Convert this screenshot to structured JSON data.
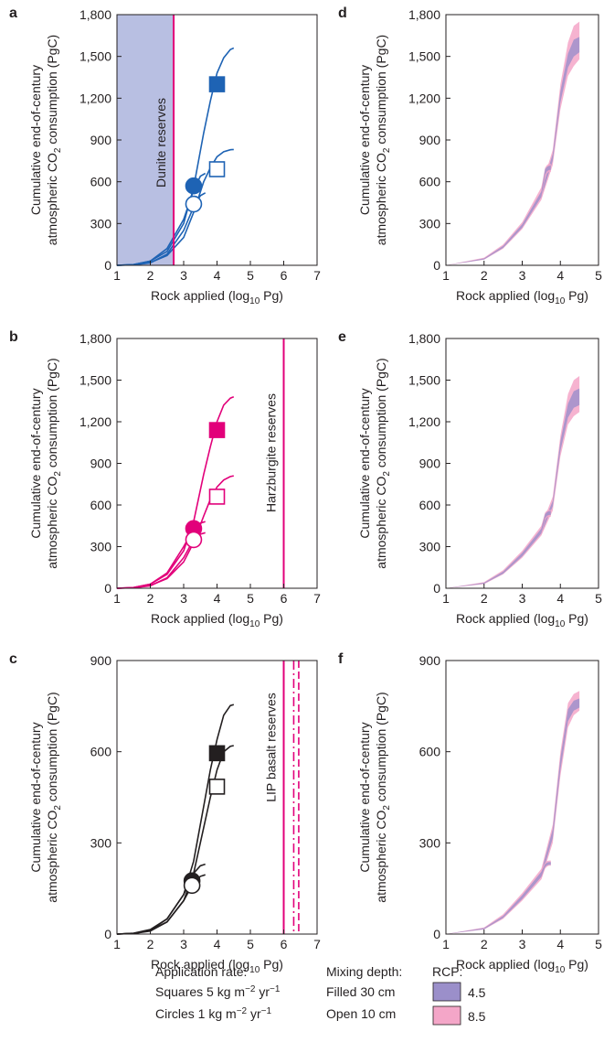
{
  "panels": [
    {
      "label": "a",
      "xlabel": "Rock applied (log10 Pg)",
      "ylabel_line1": "Cumulative end-of-century",
      "ylabel_line2": "atmospheric CO2 consumption (PgC)",
      "reserve_label": "Dunite reserves",
      "color": "#1e63b4",
      "shade_color": "#b8bfe2",
      "reserve_x": 2.7,
      "xlim": [
        1,
        7
      ],
      "ylim": [
        0,
        1800
      ],
      "xticks": [
        "1",
        "2",
        "3",
        "4",
        "5",
        "6",
        "7"
      ],
      "yticks": [
        "0",
        "300",
        "600",
        "900",
        "1,200",
        "1,500",
        "1,800"
      ],
      "curves": [
        {
          "x": [
            1.0,
            1.5,
            2.0,
            2.5,
            3.0,
            3.3,
            3.6,
            3.8,
            4.0,
            4.2,
            4.4,
            4.5
          ],
          "y": [
            0,
            5,
            30,
            100,
            300,
            560,
            950,
            1180,
            1380,
            1490,
            1550,
            1560
          ]
        },
        {
          "x": [
            1.0,
            1.5,
            2.0,
            2.5,
            3.0,
            3.3,
            3.6,
            3.8,
            4.0,
            4.2,
            4.4,
            4.5
          ],
          "y": [
            0,
            3,
            20,
            70,
            200,
            380,
            600,
            700,
            780,
            815,
            830,
            832
          ]
        },
        {
          "x": [
            1.0,
            1.5,
            2.0,
            2.5,
            3.0,
            3.3,
            3.5,
            3.65
          ],
          "y": [
            0,
            5,
            30,
            120,
            330,
            540,
            640,
            660
          ]
        },
        {
          "x": [
            1.0,
            1.5,
            2.0,
            2.5,
            3.0,
            3.3,
            3.5,
            3.65
          ],
          "y": [
            0,
            3,
            18,
            80,
            250,
            420,
            500,
            520
          ]
        }
      ],
      "markers": [
        {
          "shape": "square",
          "fill": "filled",
          "x": 4.0,
          "y": 1300
        },
        {
          "shape": "square",
          "fill": "open",
          "x": 4.0,
          "y": 690
        },
        {
          "shape": "circle",
          "fill": "filled",
          "x": 3.3,
          "y": 570
        },
        {
          "shape": "circle",
          "fill": "open",
          "x": 3.3,
          "y": 440
        }
      ]
    },
    {
      "label": "b",
      "xlabel": "Rock applied (log10 Pg)",
      "ylabel_line1": "Cumulative end-of-century",
      "ylabel_line2": "atmospheric CO2 consumption (PgC)",
      "reserve_label": "Harzburgite reserves",
      "color": "#e2007a",
      "reserve_x": 6.0,
      "xlim": [
        1,
        7
      ],
      "ylim": [
        0,
        1800
      ],
      "xticks": [
        "1",
        "2",
        "3",
        "4",
        "5",
        "6",
        "7"
      ],
      "yticks": [
        "0",
        "300",
        "600",
        "900",
        "1,200",
        "1,500",
        "1,800"
      ],
      "curves": [
        {
          "x": [
            1.0,
            1.5,
            2.0,
            2.5,
            3.0,
            3.3,
            3.6,
            3.8,
            4.0,
            4.2,
            4.4,
            4.5
          ],
          "y": [
            0,
            5,
            30,
            100,
            270,
            480,
            820,
            1020,
            1200,
            1320,
            1370,
            1380
          ]
        },
        {
          "x": [
            1.0,
            1.5,
            2.0,
            2.5,
            3.0,
            3.3,
            3.6,
            3.8,
            4.0,
            4.2,
            4.4,
            4.5
          ],
          "y": [
            0,
            3,
            20,
            70,
            190,
            330,
            520,
            640,
            730,
            780,
            805,
            810
          ]
        },
        {
          "x": [
            1.0,
            1.5,
            2.0,
            2.5,
            3.0,
            3.3,
            3.5,
            3.65
          ],
          "y": [
            0,
            5,
            30,
            110,
            300,
            430,
            470,
            480
          ]
        },
        {
          "x": [
            1.0,
            1.5,
            2.0,
            2.5,
            3.0,
            3.3,
            3.5,
            3.65
          ],
          "y": [
            0,
            3,
            18,
            75,
            220,
            350,
            390,
            400
          ]
        }
      ],
      "markers": [
        {
          "shape": "square",
          "fill": "filled",
          "x": 4.0,
          "y": 1140
        },
        {
          "shape": "square",
          "fill": "open",
          "x": 4.0,
          "y": 660
        },
        {
          "shape": "circle",
          "fill": "filled",
          "x": 3.3,
          "y": 430
        },
        {
          "shape": "circle",
          "fill": "open",
          "x": 3.3,
          "y": 350
        }
      ]
    },
    {
      "label": "c",
      "xlabel": "Rock applied (log10 Pg)",
      "ylabel_line1": "Cumulative end-of-century",
      "ylabel_line2": "atmospheric CO2 consumption (PgC)",
      "reserve_label": "LIP basalt reserves",
      "color": "#231f20",
      "reserve_color": "#e2007a",
      "reserve_x": 6.0,
      "reserve_dashed_x": [
        6.3,
        6.45
      ],
      "xlim": [
        1,
        7
      ],
      "ylim": [
        0,
        900
      ],
      "xticks": [
        "1",
        "2",
        "3",
        "4",
        "5",
        "6",
        "7"
      ],
      "yticks": [
        "0",
        "300",
        "600",
        "900"
      ],
      "curves": [
        {
          "x": [
            1.0,
            1.5,
            2.0,
            2.5,
            3.0,
            3.3,
            3.6,
            3.8,
            4.0,
            4.2,
            4.4,
            4.5
          ],
          "y": [
            0,
            3,
            15,
            50,
            130,
            240,
            420,
            540,
            640,
            720,
            752,
            755
          ]
        },
        {
          "x": [
            1.0,
            1.5,
            2.0,
            2.5,
            3.0,
            3.3,
            3.6,
            3.8,
            4.0,
            4.2,
            4.4,
            4.5
          ],
          "y": [
            0,
            2,
            12,
            40,
            110,
            200,
            350,
            450,
            540,
            600,
            618,
            620
          ]
        },
        {
          "x": [
            1.0,
            1.5,
            2.0,
            2.5,
            3.0,
            3.3,
            3.5,
            3.65
          ],
          "y": [
            0,
            2,
            12,
            50,
            130,
            200,
            225,
            230
          ]
        },
        {
          "x": [
            1.0,
            1.5,
            2.0,
            2.5,
            3.0,
            3.3,
            3.5,
            3.65
          ],
          "y": [
            0,
            2,
            10,
            40,
            110,
            170,
            190,
            195
          ]
        }
      ],
      "markers": [
        {
          "shape": "square",
          "fill": "filled",
          "x": 4.0,
          "y": 595
        },
        {
          "shape": "square",
          "fill": "open",
          "x": 4.0,
          "y": 485
        },
        {
          "shape": "circle",
          "fill": "filled",
          "x": 3.25,
          "y": 175
        },
        {
          "shape": "circle",
          "fill": "open",
          "x": 3.25,
          "y": 160
        }
      ]
    },
    {
      "label": "d",
      "xlabel": "Rock applied (log10 Pg)",
      "ylabel_line1": "Cumulative end-of-century",
      "ylabel_line2": "atmospheric CO2 consumption (PgC)",
      "xlim": [
        1,
        5
      ],
      "ylim": [
        0,
        1800
      ],
      "xticks": [
        "1",
        "2",
        "3",
        "4",
        "5"
      ],
      "yticks": [
        "0",
        "300",
        "600",
        "900",
        "1,200",
        "1,500",
        "1,800"
      ],
      "bands": [
        {
          "rcp": "8.5",
          "x": [
            1.0,
            2.0,
            2.5,
            3.0,
            3.5,
            3.8,
            4.0,
            4.2,
            4.35,
            4.5
          ],
          "low": [
            0,
            40,
            120,
            260,
            470,
            720,
            1120,
            1360,
            1430,
            1480
          ],
          "high": [
            0,
            55,
            150,
            310,
            560,
            830,
            1300,
            1600,
            1720,
            1750
          ]
        },
        {
          "rcp": "4.5",
          "x": [
            1.0,
            2.0,
            2.5,
            3.0,
            3.5,
            3.8,
            4.0,
            4.2,
            4.35,
            4.5
          ],
          "low": [
            0,
            42,
            125,
            270,
            490,
            750,
            1170,
            1420,
            1500,
            1530
          ],
          "high": [
            0,
            50,
            140,
            295,
            530,
            800,
            1250,
            1520,
            1620,
            1640
          ]
        },
        {
          "rcp": "8.5",
          "x": [
            3.5,
            3.6,
            3.65,
            3.7,
            3.75
          ],
          "low": [
            470,
            630,
            660,
            670,
            670
          ],
          "high": [
            560,
            700,
            720,
            730,
            730
          ]
        },
        {
          "rcp": "4.5",
          "x": [
            3.5,
            3.6,
            3.65,
            3.7,
            3.75
          ],
          "low": [
            490,
            650,
            675,
            685,
            685
          ],
          "high": [
            530,
            690,
            708,
            715,
            715
          ]
        }
      ]
    },
    {
      "label": "e",
      "xlabel": "Rock applied (log10 Pg)",
      "ylabel_line1": "Cumulative end-of-century",
      "ylabel_line2": "atmospheric CO2 consumption (PgC)",
      "xlim": [
        1,
        5
      ],
      "ylim": [
        0,
        1800
      ],
      "xticks": [
        "1",
        "2",
        "3",
        "4",
        "5"
      ],
      "yticks": [
        "0",
        "300",
        "600",
        "900",
        "1,200",
        "1,500",
        "1,800"
      ],
      "bands": [
        {
          "rcp": "8.5",
          "x": [
            1.0,
            2.0,
            2.5,
            3.0,
            3.5,
            3.8,
            4.0,
            4.2,
            4.35,
            4.5
          ],
          "low": [
            0,
            30,
            100,
            220,
            380,
            560,
            950,
            1180,
            1240,
            1270
          ],
          "high": [
            0,
            45,
            130,
            270,
            450,
            660,
            1100,
            1400,
            1500,
            1530
          ]
        },
        {
          "rcp": "4.5",
          "x": [
            1.0,
            2.0,
            2.5,
            3.0,
            3.5,
            3.8,
            4.0,
            4.2,
            4.35,
            4.5
          ],
          "low": [
            0,
            33,
            105,
            230,
            395,
            590,
            990,
            1230,
            1300,
            1320
          ],
          "high": [
            0,
            40,
            120,
            255,
            430,
            630,
            1060,
            1330,
            1420,
            1440
          ]
        },
        {
          "rcp": "8.5",
          "x": [
            3.5,
            3.6,
            3.65,
            3.7,
            3.75
          ],
          "low": [
            380,
            490,
            510,
            515,
            515
          ],
          "high": [
            450,
            545,
            560,
            565,
            565
          ]
        },
        {
          "rcp": "4.5",
          "x": [
            3.5,
            3.6,
            3.65,
            3.7,
            3.75
          ],
          "low": [
            395,
            505,
            522,
            528,
            528
          ],
          "high": [
            430,
            535,
            550,
            555,
            555
          ]
        }
      ]
    },
    {
      "label": "f",
      "xlabel": "Rock applied (log10 Pg)",
      "ylabel_line1": "Cumulative end-of-century",
      "ylabel_line2": "atmospheric CO2 consumption (PgC)",
      "xlim": [
        1,
        5
      ],
      "ylim": [
        0,
        900
      ],
      "xticks": [
        "1",
        "2",
        "3",
        "4",
        "5"
      ],
      "yticks": [
        "0",
        "300",
        "600",
        "900"
      ],
      "bands": [
        {
          "rcp": "8.5",
          "x": [
            1.0,
            2.0,
            2.5,
            3.0,
            3.5,
            3.8,
            4.0,
            4.2,
            4.35,
            4.5
          ],
          "low": [
            0,
            15,
            50,
            110,
            180,
            300,
            520,
            680,
            720,
            735
          ],
          "high": [
            0,
            22,
            65,
            135,
            215,
            360,
            600,
            760,
            790,
            800
          ]
        },
        {
          "rcp": "4.5",
          "x": [
            1.0,
            2.0,
            2.5,
            3.0,
            3.5,
            3.8,
            4.0,
            4.2,
            4.35,
            4.5
          ],
          "low": [
            0,
            16,
            53,
            115,
            188,
            315,
            540,
            700,
            735,
            745
          ],
          "high": [
            0,
            20,
            60,
            128,
            205,
            345,
            580,
            740,
            768,
            775
          ]
        },
        {
          "rcp": "8.5",
          "x": [
            3.5,
            3.6,
            3.65,
            3.7,
            3.75
          ],
          "low": [
            180,
            215,
            222,
            225,
            225
          ],
          "high": [
            215,
            235,
            240,
            242,
            242
          ]
        },
        {
          "rcp": "4.5",
          "x": [
            3.5,
            3.6,
            3.65,
            3.7,
            3.75
          ],
          "low": [
            188,
            220,
            226,
            228,
            228
          ],
          "high": [
            205,
            230,
            235,
            237,
            237
          ]
        }
      ]
    }
  ],
  "chart_data": {
    "type": "line",
    "note_panels_above": "panels a–f hold all series",
    "xlabel": "Rock applied (log10 Pg)",
    "ylabel": "Cumulative end-of-century atmospheric CO2 consumption (PgC)"
  },
  "legend": {
    "application_rate_title": "Application rate:",
    "squares_label": "Squares 5 kg m",
    "squares_exp": "−2",
    "squares_unit": " yr",
    "squares_unit_exp": "−1",
    "circles_label": "Circles 1 kg m",
    "circles_exp": "−2",
    "circles_unit": " yr",
    "circles_unit_exp": "−1",
    "mixing_title": "Mixing depth:",
    "filled_label": "Filled 30 cm",
    "open_label": "Open 10 cm",
    "rcp_title": "RCP:",
    "rcp45_label": "4.5",
    "rcp85_label": "8.5",
    "rcp45_color": "#9b8fca",
    "rcp85_color": "#f4a6c8"
  }
}
